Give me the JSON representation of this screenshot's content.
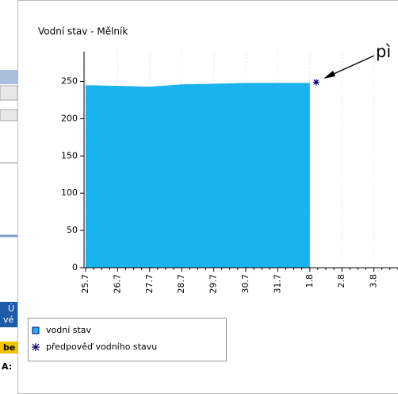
{
  "sidebar_fragments": [
    "Ú",
    "vé",
    "be",
    "A:"
  ],
  "chart_data": {
    "type": "area",
    "title": "Vodní stav - Mělník",
    "annotation": "pì",
    "categories": [
      "25.7",
      "26.7",
      "27.7",
      "28.7",
      "29.7",
      "30.7",
      "31.7",
      "1.8",
      "2.8",
      "3.8"
    ],
    "series": [
      {
        "name": "vodní stav",
        "color": "#19b4f0",
        "marker": "square",
        "values": [
          245,
          244,
          243,
          246,
          247,
          248,
          248,
          248,
          null,
          null
        ]
      },
      {
        "name": "předpověď vodního stavu",
        "color": "#000080",
        "marker": "star",
        "values": [
          null,
          null,
          null,
          null,
          null,
          null,
          null,
          249,
          null,
          null
        ]
      }
    ],
    "ylim": [
      0,
      290
    ],
    "yticks": [
      0,
      50,
      100,
      150,
      200,
      250
    ],
    "grid": "x",
    "legend": "bottom-left"
  }
}
